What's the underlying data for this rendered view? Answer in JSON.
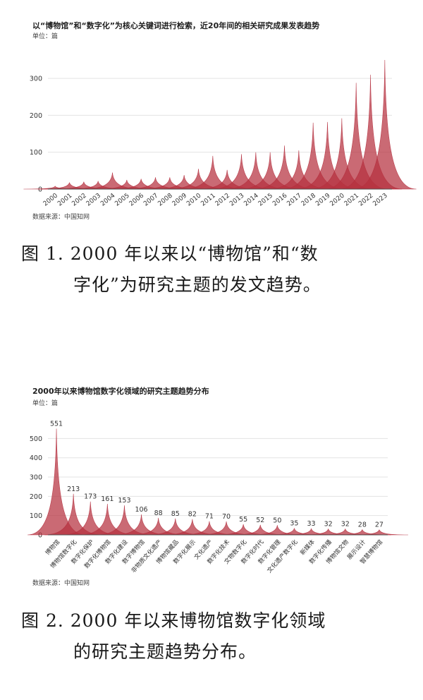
{
  "figure1": {
    "title": "以“博物馆”和“数字化”为核心关键词进行检索，近20年间的相关研究成果发表趋势",
    "unit": "单位：篇",
    "source": "数据来源：中国知网",
    "caption_line1": "图 1. 2000 年以来以“博物馆”和“数",
    "caption_line2": "字化”为研究主题的发文趋势。"
  },
  "figure2": {
    "title": "2000年以来博物馆数字化领域的研究主题趋势分布",
    "unit": "单位：篇",
    "source": "数据来源：中国知网",
    "caption_line1": "图 2. 2000 年以来博物馆数字化领域",
    "caption_line2": "的研究主题趋势分布。"
  },
  "colors": {
    "fill": "#b5303f",
    "grid": "#e3e3e3",
    "axis": "#555555"
  },
  "chart_data": [
    {
      "type": "area",
      "title": "以“博物馆”和“数字化”为核心关键词进行检索，近20年间的相关研究成果发表趋势",
      "ylabel": "单位：篇",
      "categories": [
        "2000",
        "2001",
        "2002",
        "2003",
        "2004",
        "2005",
        "2006",
        "2007",
        "2008",
        "2009",
        "2010",
        "2011",
        "2012",
        "2013",
        "2014",
        "2015",
        "2016",
        "2017",
        "2018",
        "2019",
        "2020",
        "2021",
        "2022",
        "2023"
      ],
      "values": [
        8,
        18,
        20,
        22,
        45,
        25,
        28,
        32,
        32,
        38,
        55,
        90,
        52,
        95,
        100,
        100,
        118,
        105,
        180,
        182,
        192,
        288,
        310,
        350
      ],
      "ylim": [
        0,
        350
      ],
      "yticks": [
        0,
        100,
        200,
        300
      ],
      "grid": true
    },
    {
      "type": "area",
      "title": "2000年以来博物馆数字化领域的研究主题趋势分布",
      "ylabel": "单位：篇",
      "categories": [
        "博物馆",
        "博物馆数字化",
        "数字化保护",
        "数字化博物馆",
        "数字化建设",
        "数字博物馆",
        "非物质文化遗产",
        "博物馆藏品",
        "数字化展示",
        "文化遗产",
        "数字化技术",
        "文物数字化",
        "数字化时代",
        "数字化管理",
        "文化遗产数字化",
        "新媒体",
        "数字化传播",
        "博物馆文物",
        "展示设计",
        "智慧博物馆"
      ],
      "values": [
        551,
        213,
        173,
        161,
        153,
        106,
        88,
        85,
        82,
        71,
        70,
        55,
        52,
        50,
        35,
        33,
        32,
        32,
        28,
        27
      ],
      "data_labels": [
        "551",
        "213",
        "173",
        "161",
        "153",
        "106",
        "88",
        "85",
        "82",
        "71",
        "70",
        "55",
        "52",
        "50",
        "35",
        "33",
        "32",
        "32",
        "28",
        "27"
      ],
      "ylim": [
        0,
        560
      ],
      "yticks": [
        0,
        100,
        200,
        300,
        400,
        500
      ],
      "grid": true
    }
  ]
}
